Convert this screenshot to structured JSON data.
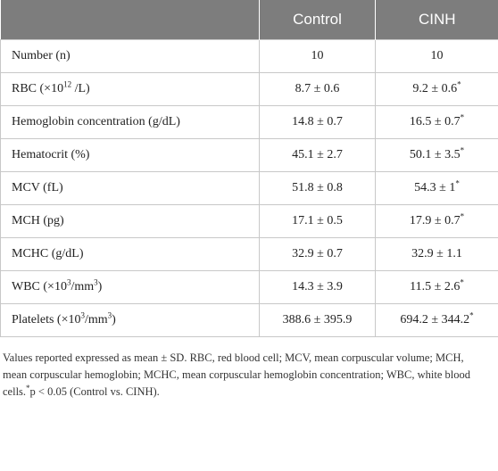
{
  "table": {
    "headers": [
      "",
      "Control",
      "CINH"
    ],
    "rows": [
      {
        "label_html": "Number (n)",
        "control_html": "10",
        "cinh_html": "10"
      },
      {
        "label_html": "RBC (×10<sup>12</sup> /L)",
        "control_html": "8.7 ± 0.6",
        "cinh_html": "9.2 ± 0.6<sup>*</sup>"
      },
      {
        "label_html": "Hemoglobin concentration (g/dL)",
        "control_html": "14.8 ± 0.7",
        "cinh_html": "16.5 ± 0.7<sup>*</sup>"
      },
      {
        "label_html": "Hematocrit (%)",
        "control_html": "45.1 ± 2.7",
        "cinh_html": "50.1 ± 3.5<sup>*</sup>"
      },
      {
        "label_html": "MCV (fL)",
        "control_html": "51.8 ± 0.8",
        "cinh_html": "54.3 ± 1<sup>*</sup>"
      },
      {
        "label_html": "MCH (pg)",
        "control_html": "17.1 ± 0.5",
        "cinh_html": "17.9 ± 0.7<sup>*</sup>"
      },
      {
        "label_html": "MCHC (g/dL)",
        "control_html": "32.9 ± 0.7",
        "cinh_html": "32.9 ± 1.1"
      },
      {
        "label_html": "WBC (×10<sup>3</sup>/mm<sup>3</sup>)",
        "control_html": "14.3 ± 3.9",
        "cinh_html": "11.5 ± 2.6<sup>*</sup>"
      },
      {
        "label_html": "Platelets (×10<sup>3</sup>/mm<sup>3</sup>)",
        "control_html": "388.6 ± 395.9",
        "cinh_html": "694.2 ± 344.2<sup>*</sup>"
      }
    ]
  },
  "footnote_html": "Values reported expressed as mean ± SD. RBC, red blood cell; MCV, mean corpuscular volume; MCH, mean corpuscular hemoglobin; MCHC, mean corpuscular hemoglobin concentration; WBC, white blood cells.<sup>*</sup>p &lt; 0.05 (Control vs. CINH).",
  "colors": {
    "header_bg": "#7d7d7d",
    "header_text": "#ffffff",
    "grid": "#c8c8c8"
  }
}
